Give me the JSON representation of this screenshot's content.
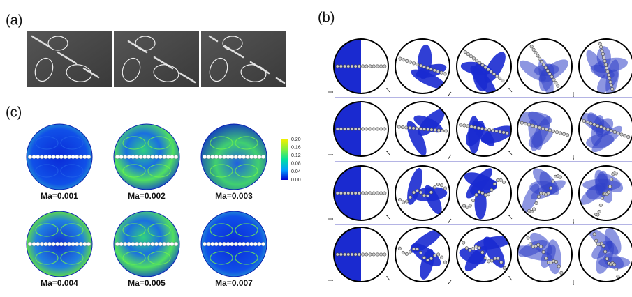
{
  "panels": {
    "a": {
      "label": "(a)"
    },
    "b": {
      "label": "(b)"
    },
    "c": {
      "label": "(c)",
      "colorbar_ticks": [
        "0.20",
        "0.16",
        "0.12",
        "0.08",
        "0.04",
        "0.00"
      ],
      "cases": [
        "Ma=0.001",
        "Ma=0.002",
        "Ma=0.003",
        "Ma=0.004",
        "Ma=0.005",
        "Ma=0.007"
      ]
    }
  }
}
